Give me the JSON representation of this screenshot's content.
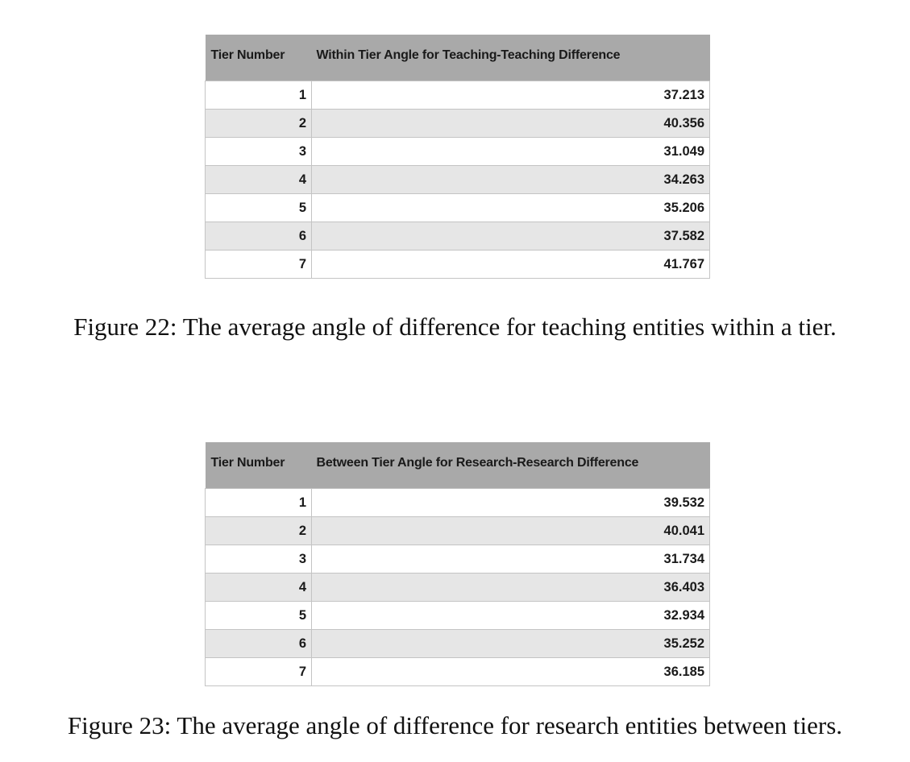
{
  "figures": [
    {
      "headers": [
        "Tier Number",
        "Within Tier Angle for Teaching-Teaching Difference"
      ],
      "rows": [
        [
          "1",
          "37.213"
        ],
        [
          "2",
          "40.356"
        ],
        [
          "3",
          "31.049"
        ],
        [
          "4",
          "34.263"
        ],
        [
          "5",
          "35.206"
        ],
        [
          "6",
          "37.582"
        ],
        [
          "7",
          "41.767"
        ]
      ],
      "caption": "Figure 22: The average angle of difference for teaching entities within a tier."
    },
    {
      "headers": [
        "Tier Number",
        "Between Tier Angle for Research-Research Difference"
      ],
      "rows": [
        [
          "1",
          "39.532"
        ],
        [
          "2",
          "40.041"
        ],
        [
          "3",
          "31.734"
        ],
        [
          "4",
          "36.403"
        ],
        [
          "5",
          "32.934"
        ],
        [
          "6",
          "35.252"
        ],
        [
          "7",
          "36.185"
        ]
      ],
      "caption": "Figure 23: The average angle of difference for research entities between tiers."
    }
  ]
}
